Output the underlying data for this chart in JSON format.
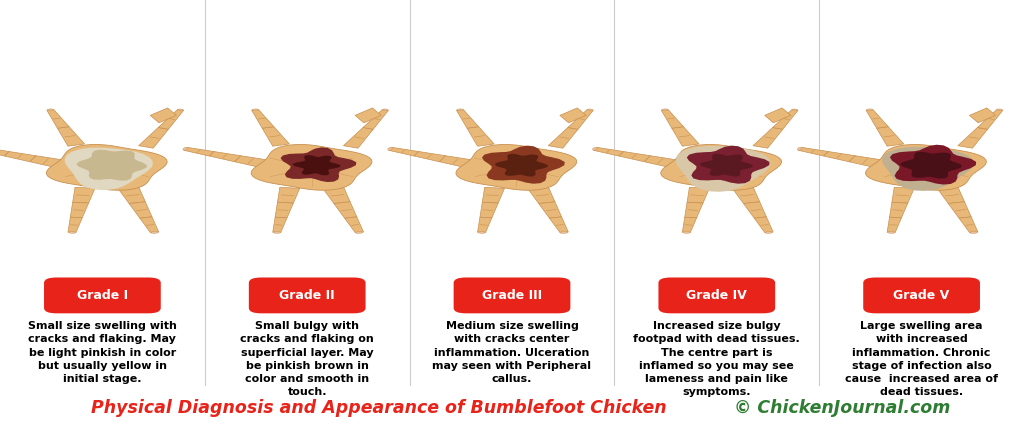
{
  "background_color": "#ffffff",
  "title_text": "Physical Diagnosis and Appearance of Bumblefoot Chicken",
  "title_color": "#e8231a",
  "copyright_text": "© ChickenJournal.com",
  "copyright_color": "#2e7d32",
  "title_fontsize": 12.5,
  "grades": [
    "Grade I",
    "Grade II",
    "Grade III",
    "Grade IV",
    "Grade V"
  ],
  "grade_bg_color": "#e8231a",
  "grade_text_color": "#ffffff",
  "descriptions": [
    "Small size swelling with\ncracks and flaking. May\nbe light pinkish in color\nbut usually yellow in\ninitial stage.",
    "Small bulgy with\ncracks and flaking on\nsuperficial layer. May\nbe pinkish brown in\ncolor and smooth in\ntouch.",
    "Medium size swelling\nwith cracks center\ninflammation. Ulceration\nmay seen with Peripheral\ncallus.",
    "Increased size bulgy\nfootpad with dead tissues.\nThe centre part is\ninflamed so you may see\nlameness and pain like\nsymptoms.",
    "Large swelling area\nwith increased\ninflammation. Chronic\nstage of infection also\ncause  increased area of\ndead tissues."
  ],
  "desc_fontsize": 8.0,
  "desc_color": "#000000",
  "foot_skin_color": "#e8b878",
  "foot_skin_dark": "#d4a060",
  "foot_outline_color": "#c89050",
  "nail_color": "#e8c0a0",
  "n_sections": 5,
  "grade_badge_color": "#e8231a",
  "separator_color": "#cccccc",
  "lesion_configs": [
    {
      "outer_color": "#e0d8c0",
      "outer_r": 0.048,
      "mid_color": null,
      "mid_r": null,
      "inner_color": "#c8b890",
      "inner_r": 0.035,
      "has_ring": false
    },
    {
      "outer_color": null,
      "outer_r": null,
      "mid_color": "#7a2828",
      "mid_r": 0.036,
      "inner_color": "#4a1010",
      "inner_r": 0.022,
      "has_ring": false
    },
    {
      "outer_color": null,
      "outer_r": null,
      "mid_color": "#8b3820",
      "mid_r": 0.04,
      "inner_color": "#5a2010",
      "inner_r": 0.025,
      "has_ring": false
    },
    {
      "outer_color": "#d8c8a8",
      "outer_r": 0.052,
      "mid_color": "#7a2030",
      "mid_r": 0.04,
      "inner_color": "#5a1820",
      "inner_r": 0.025,
      "has_ring": true
    },
    {
      "outer_color": "#c0b090",
      "outer_r": 0.05,
      "mid_color": "#7a1828",
      "mid_r": 0.042,
      "inner_color": "#4a1018",
      "inner_r": 0.03,
      "has_ring": true
    }
  ]
}
